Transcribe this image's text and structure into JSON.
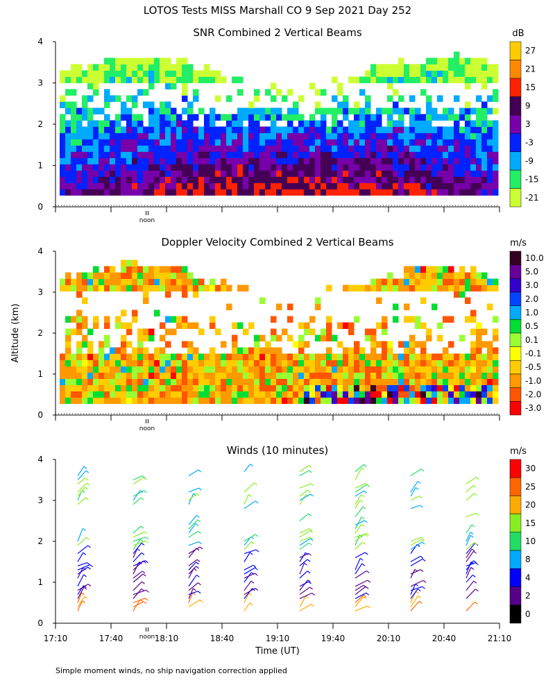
{
  "page_title": "LOTOS Tests MISS Marshall CO   9 Sep 2021 Day 252",
  "y_axis_label": "Altitude (km)",
  "x_axis_label": "Time (UT)",
  "noon_label": "noon",
  "footnote": "Simple moment winds, no ship navigation correction applied",
  "chart_data": [
    {
      "type": "heatmap",
      "title": "SNR Combined 2 Vertical Beams",
      "ylim": [
        0,
        4
      ],
      "yticks": [
        "0",
        "1",
        "2",
        "3",
        "4"
      ],
      "colorbar_unit": "dB",
      "colorbar_labels": [
        "27",
        "21",
        "15",
        "9",
        "3",
        "-3",
        "-9",
        "-15",
        "-21"
      ],
      "colorbar_colors": [
        "#ffcc00",
        "#ff8800",
        "#ff2200",
        "#440055",
        "#7700aa",
        "#0022ff",
        "#00aaff",
        "#22ee66",
        "#ccff33"
      ]
    },
    {
      "type": "heatmap",
      "title": "Doppler Velocity Combined 2 Vertical Beams",
      "ylim": [
        0,
        4
      ],
      "yticks": [
        "0",
        "1",
        "2",
        "3",
        "4"
      ],
      "colorbar_unit": "m/s",
      "colorbar_labels": [
        "10.0",
        "5.0",
        "3.0",
        "2.0",
        "1.0",
        "0.5",
        "0.1",
        "-0.1",
        "-0.5",
        "-1.0",
        "-2.0",
        "-3.0"
      ],
      "colorbar_colors": [
        "#330022",
        "#660099",
        "#3300cc",
        "#0044ff",
        "#00aaff",
        "#00dd33",
        "#99ff33",
        "#ffff00",
        "#ffcc00",
        "#ff9900",
        "#ff5500",
        "#ff0000"
      ]
    },
    {
      "type": "scatter",
      "title": "Winds (10 minutes)",
      "ylim": [
        0,
        4
      ],
      "yticks": [
        "0",
        "1",
        "2",
        "3",
        "4"
      ],
      "xticks": [
        "17:10",
        "17:40",
        "18:10",
        "18:40",
        "19:10",
        "19:40",
        "20:10",
        "20:40",
        "21:10"
      ],
      "colorbar_unit": "m/s",
      "colorbar_labels": [
        "30",
        "25",
        "20",
        "15",
        "10",
        "8",
        "4",
        "2",
        "0"
      ],
      "colorbar_colors": [
        "#ff0000",
        "#ff6600",
        "#ffaa00",
        "#88ee22",
        "#22dd66",
        "#00aaff",
        "#0000ff",
        "#550088",
        "#000000"
      ]
    }
  ]
}
